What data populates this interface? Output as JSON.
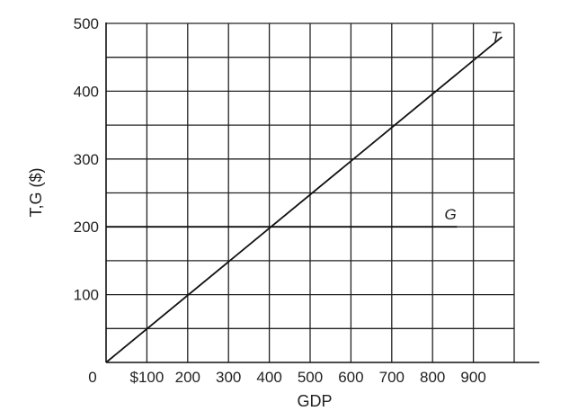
{
  "chart_data": {
    "type": "line",
    "xlabel": "GDP",
    "ylabel": "T,G ($)",
    "xlim": [
      0,
      1000
    ],
    "ylim": [
      0,
      500
    ],
    "x_ticks": [
      {
        "value": 0,
        "label": "0"
      },
      {
        "value": 100,
        "label": "$100"
      },
      {
        "value": 200,
        "label": "200"
      },
      {
        "value": 300,
        "label": "300"
      },
      {
        "value": 400,
        "label": "400"
      },
      {
        "value": 500,
        "label": "500"
      },
      {
        "value": 600,
        "label": "600"
      },
      {
        "value": 700,
        "label": "700"
      },
      {
        "value": 800,
        "label": "800"
      },
      {
        "value": 900,
        "label": "900"
      }
    ],
    "y_ticks": [
      {
        "value": 100,
        "label": "100"
      },
      {
        "value": 200,
        "label": "200"
      },
      {
        "value": 300,
        "label": "300"
      },
      {
        "value": 400,
        "label": "400"
      },
      {
        "value": 500,
        "label": "500"
      }
    ],
    "grid": true,
    "grid_x_step": 100,
    "grid_y_step": 50,
    "series": [
      {
        "name": "T",
        "x": [
          0,
          970
        ],
        "y": [
          0,
          480
        ]
      },
      {
        "name": "G",
        "x": [
          0,
          860
        ],
        "y": [
          200,
          200
        ]
      }
    ],
    "colors": {
      "line": "#111111",
      "grid": "#222222"
    }
  }
}
